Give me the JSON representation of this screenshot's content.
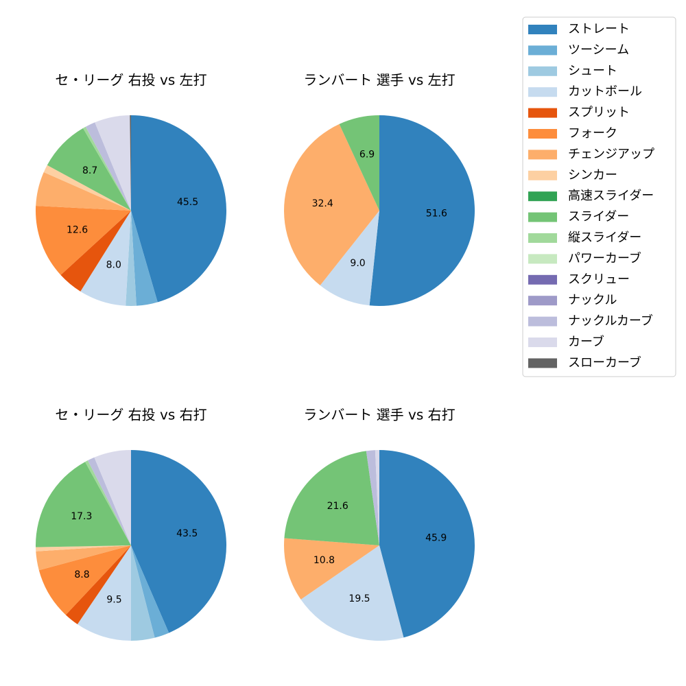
{
  "chart_data": [
    {
      "type": "pie",
      "title": "セ・リーグ 右投 vs 左打",
      "values": [
        45.5,
        3.6,
        1.8,
        8.0,
        4.3,
        12.6,
        5.8,
        1.3,
        0,
        8.7,
        0.5,
        0,
        0,
        0,
        1.7,
        6.0,
        0.2
      ],
      "value_labels": [
        "45.5",
        null,
        null,
        "8.0",
        null,
        "12.6",
        null,
        null,
        null,
        "8.7",
        null,
        null,
        null,
        null,
        null,
        null,
        null
      ]
    },
    {
      "type": "pie",
      "title": "ランバート 選手 vs 左打",
      "values": [
        51.6,
        0,
        0,
        9.0,
        0,
        0,
        32.4,
        0,
        0,
        6.9,
        0,
        0,
        0,
        0,
        0,
        0,
        0
      ],
      "value_labels": [
        "51.6",
        null,
        null,
        "9.0",
        null,
        null,
        "32.4",
        null,
        null,
        "6.9",
        null,
        null,
        null,
        null,
        null,
        null,
        null
      ]
    },
    {
      "type": "pie",
      "title": "セ・リーグ 右投 vs 右打",
      "values": [
        43.5,
        2.5,
        4.0,
        9.5,
        2.5,
        8.8,
        3.2,
        0.7,
        0,
        17.3,
        0.5,
        0,
        0,
        0,
        1.2,
        6.3,
        0
      ],
      "value_labels": [
        "43.5",
        null,
        null,
        "9.5",
        null,
        "8.8",
        null,
        null,
        null,
        "17.3",
        null,
        null,
        null,
        null,
        null,
        null,
        null
      ]
    },
    {
      "type": "pie",
      "title": "ランバート 選手 vs 右打",
      "values": [
        45.9,
        0,
        0,
        19.5,
        0,
        0,
        10.8,
        0,
        0,
        21.6,
        0,
        0,
        0,
        0,
        1.5,
        0.7,
        0
      ],
      "value_labels": [
        "45.9",
        null,
        null,
        "19.5",
        null,
        null,
        "10.8",
        null,
        null,
        "21.6",
        null,
        null,
        null,
        null,
        null,
        null,
        null
      ]
    }
  ],
  "legend": {
    "categories": [
      "ストレート",
      "ツーシーム",
      "シュート",
      "カットボール",
      "スプリット",
      "フォーク",
      "チェンジアップ",
      "シンカー",
      "高速スライダー",
      "スライダー",
      "縦スライダー",
      "パワーカーブ",
      "スクリュー",
      "ナックル",
      "ナックルカーブ",
      "カーブ",
      "スローカーブ"
    ],
    "colors": [
      "#3182bd",
      "#6baed6",
      "#9ecae1",
      "#c6dbef",
      "#e6550d",
      "#fd8d3c",
      "#fdae6b",
      "#fdd0a2",
      "#31a354",
      "#74c476",
      "#a1d99b",
      "#c7e9c0",
      "#756bb1",
      "#9e9ac8",
      "#bcbddc",
      "#dadaeb",
      "#636363"
    ]
  }
}
